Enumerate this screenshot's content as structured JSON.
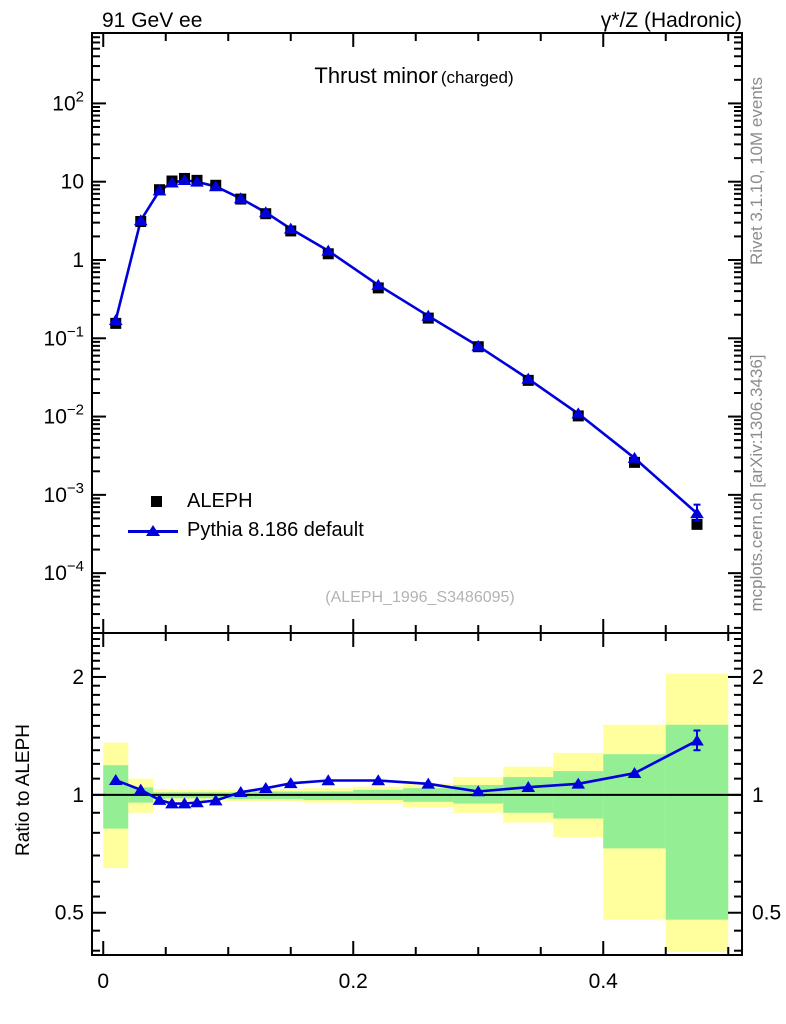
{
  "header": {
    "left": "91 GeV ee",
    "right": "γ*/Z (Hadronic)"
  },
  "title": {
    "main": "Thrust minor",
    "sub": "(charged)"
  },
  "side_labels": {
    "rivet": "Rivet 3.1.10,  10M events",
    "mcplots": "mcplots.cern.ch [arXiv:1306.3436]"
  },
  "watermark": "(ALEPH_1996_S3486095)",
  "ratio_ylabel": "Ratio to ALEPH",
  "legend": {
    "entries": [
      {
        "label": "ALEPH",
        "marker": "black-square"
      },
      {
        "label": "Pythia 8.186 default",
        "marker": "blue-line-triangle"
      }
    ]
  },
  "colors": {
    "mc_blue": "#0000dd",
    "data_black": "#000000",
    "band_yellow": "#ffff9e",
    "band_green": "#94ee94",
    "gray_text": "#8c8c8c",
    "watermark_gray": "#b3b3b3"
  },
  "chart_data": [
    {
      "type": "line",
      "title": "Thrust minor (charged)",
      "xlabel": "",
      "ylabel": "",
      "yscale": "log",
      "xlim": [
        -0.009,
        0.511
      ],
      "ylim": [
        1.72e-05,
        793
      ],
      "bin_edges": [
        0,
        0.02,
        0.04,
        0.05,
        0.06,
        0.07,
        0.08,
        0.1,
        0.12,
        0.14,
        0.16,
        0.2,
        0.24,
        0.28,
        0.32,
        0.36,
        0.4,
        0.45,
        0.5
      ],
      "x": [
        0.01,
        0.03,
        0.045,
        0.055,
        0.065,
        0.075,
        0.09,
        0.11,
        0.13,
        0.15,
        0.18,
        0.22,
        0.26,
        0.3,
        0.34,
        0.38,
        0.425,
        0.475
      ],
      "series": [
        {
          "name": "ALEPH",
          "marker": "square",
          "color": "#000000",
          "line": false,
          "values": [
            0.155,
            3.1,
            7.9,
            10.2,
            11.0,
            10.4,
            9.0,
            6.0,
            3.9,
            2.35,
            1.2,
            0.44,
            0.181,
            0.078,
            0.029,
            0.0102,
            0.0026,
            0.00042
          ]
        },
        {
          "name": "Pythia 8.186 default",
          "marker": "triangle",
          "color": "#0000dd",
          "line": true,
          "values": [
            0.17,
            3.2,
            7.7,
            9.7,
            10.45,
            9.95,
            8.7,
            6.1,
            4.05,
            2.5,
            1.31,
            0.478,
            0.193,
            0.0795,
            0.0303,
            0.0109,
            0.00295,
            0.00058
          ],
          "last_point_err": [
            0.00047,
            0.00075
          ]
        }
      ],
      "x_ticks": [
        {
          "value": 0,
          "label": "0"
        },
        {
          "value": 0.2,
          "label": "0.2"
        },
        {
          "value": 0.4,
          "label": "0.4"
        }
      ],
      "x_minor_step": 0.05,
      "y_ticks": [
        {
          "value": 100,
          "base": "10",
          "exp": "2"
        },
        {
          "value": 10,
          "base": "10",
          "exp": ""
        },
        {
          "value": 1,
          "base": "1",
          "exp": ""
        },
        {
          "value": 0.1,
          "base": "10",
          "exp": "−1"
        },
        {
          "value": 0.01,
          "base": "10",
          "exp": "−2"
        },
        {
          "value": 0.001,
          "base": "10",
          "exp": "−3"
        },
        {
          "value": 0.0001,
          "base": "10",
          "exp": "−4"
        }
      ]
    },
    {
      "type": "line",
      "title": "",
      "xlabel": "",
      "ylabel": "Ratio to ALEPH",
      "yscale": "log",
      "ylim": [
        0.39,
        2.59
      ],
      "reference_line": 1,
      "series": [
        {
          "name": "Pythia 8.186 default / ALEPH",
          "marker": "triangle",
          "color": "#0000dd",
          "line": true,
          "values": [
            1.09,
            1.03,
            0.97,
            0.95,
            0.95,
            0.956,
            0.967,
            1.016,
            1.04,
            1.07,
            1.088,
            1.088,
            1.067,
            1.02,
            1.046,
            1.067,
            1.136,
            1.375
          ],
          "last_point_err": [
            1.3,
            1.46
          ]
        }
      ],
      "bands": {
        "yellow": [
          [
            0.65,
            1.36
          ],
          [
            0.9,
            1.1
          ],
          [
            0.96,
            1.035
          ],
          [
            0.965,
            1.03
          ],
          [
            0.965,
            1.03
          ],
          [
            0.965,
            1.03
          ],
          [
            0.965,
            1.03
          ],
          [
            0.96,
            1.03
          ],
          [
            0.96,
            1.035
          ],
          [
            0.96,
            1.035
          ],
          [
            0.955,
            1.04
          ],
          [
            0.95,
            1.05
          ],
          [
            0.93,
            1.07
          ],
          [
            0.9,
            1.11
          ],
          [
            0.85,
            1.18
          ],
          [
            0.78,
            1.28
          ],
          [
            0.48,
            1.51
          ],
          [
            0.397,
            2.04
          ]
        ],
        "green": [
          [
            0.82,
            1.19
          ],
          [
            0.955,
            1.045
          ],
          [
            0.975,
            1.015
          ],
          [
            0.98,
            1.015
          ],
          [
            0.98,
            1.015
          ],
          [
            0.98,
            1.015
          ],
          [
            0.98,
            1.015
          ],
          [
            0.975,
            1.015
          ],
          [
            0.975,
            1.02
          ],
          [
            0.975,
            1.02
          ],
          [
            0.97,
            1.02
          ],
          [
            0.97,
            1.03
          ],
          [
            0.96,
            1.04
          ],
          [
            0.95,
            1.06
          ],
          [
            0.9,
            1.11
          ],
          [
            0.87,
            1.15
          ],
          [
            0.73,
            1.27
          ],
          [
            0.48,
            1.51
          ]
        ]
      },
      "y_ticks": [
        {
          "value": 2,
          "label": "2"
        },
        {
          "value": 1,
          "label": "1"
        },
        {
          "value": 0.5,
          "label": "0.5"
        }
      ],
      "y_minor": [
        2.5,
        2.4,
        2.3,
        2.2,
        2.1,
        1.9,
        1.8,
        1.7,
        1.6,
        1.5,
        1.4,
        1.3,
        1.2,
        1.1,
        0.9,
        0.8,
        0.7,
        0.6,
        0.55,
        0.45,
        0.4
      ]
    }
  ]
}
